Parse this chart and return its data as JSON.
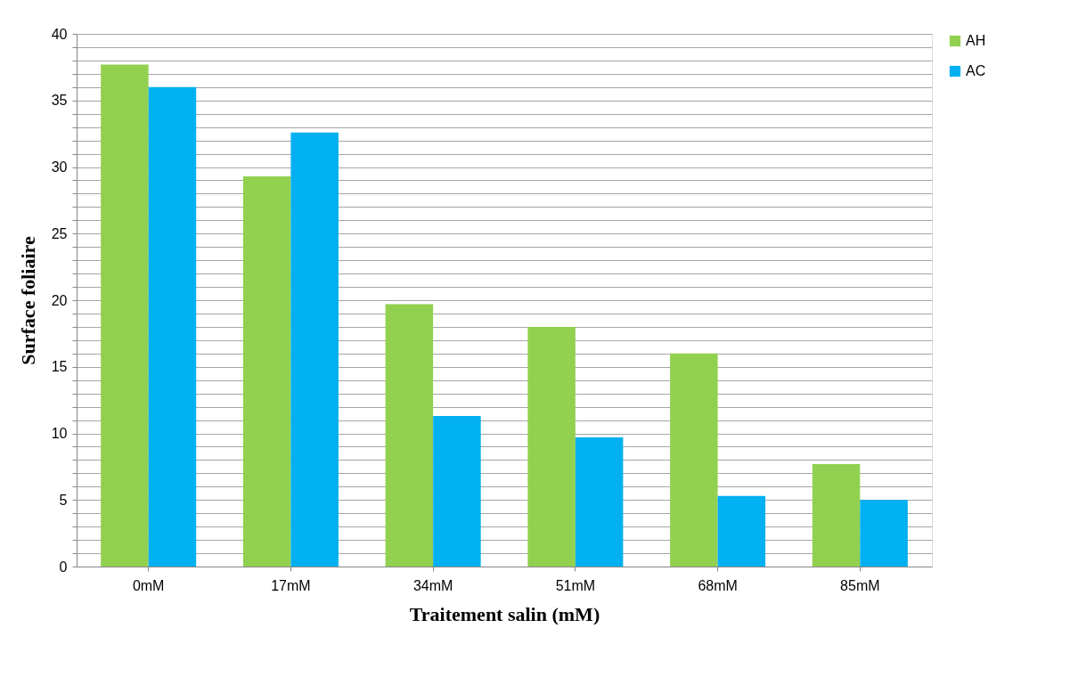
{
  "chart_data": {
    "type": "bar",
    "xlabel": "Traitement salin (mM)",
    "ylabel": "Surface foliaire",
    "categories": [
      "0mM",
      "17mM",
      "34mM",
      "51mM",
      "68mM",
      "85mM"
    ],
    "series": [
      {
        "name": "AH",
        "color": "#92d050",
        "values": [
          37.7,
          29.3,
          19.7,
          18.0,
          16.0,
          7.7
        ]
      },
      {
        "name": "AC",
        "color": "#00b0f0",
        "values": [
          36.0,
          32.6,
          11.3,
          9.7,
          5.3,
          5.0
        ]
      }
    ],
    "ylim": [
      0,
      40
    ],
    "yticks": [
      0,
      {
        "value": 1,
        "label": null
      },
      {
        "value": 2,
        "label": null
      },
      {
        "value": 3,
        "label": null
      },
      {
        "value": 4,
        "label": null
      },
      5,
      {
        "value": 6,
        "label": null
      },
      {
        "value": 7,
        "label": null
      },
      {
        "value": 8,
        "label": null
      },
      {
        "value": 9,
        "label": null
      },
      10,
      {
        "value": 11,
        "label": null
      },
      {
        "value": 12,
        "label": null
      },
      {
        "value": 13,
        "label": null
      },
      {
        "value": 14,
        "label": null
      },
      15,
      {
        "value": 16,
        "label": null
      },
      {
        "value": 17,
        "label": null
      },
      {
        "value": 18,
        "label": null
      },
      {
        "value": 19,
        "label": null
      },
      20,
      {
        "value": 21,
        "label": null
      },
      {
        "value": 22,
        "label": null
      },
      {
        "value": 23,
        "label": null
      },
      {
        "value": 24,
        "label": null
      },
      25,
      {
        "value": 26,
        "label": null
      },
      {
        "value": 27,
        "label": null
      },
      {
        "value": 28,
        "label": null
      },
      {
        "value": 29,
        "label": null
      },
      30,
      {
        "value": 31,
        "label": null
      },
      {
        "value": 32,
        "label": null
      },
      {
        "value": 33,
        "label": null
      },
      {
        "value": 34,
        "label": null
      },
      35,
      {
        "value": 36,
        "label": null
      },
      {
        "value": 37,
        "label": null
      },
      {
        "value": 38,
        "label": null
      },
      {
        "value": 39,
        "label": null
      },
      40
    ],
    "grid": "y",
    "legend": "right"
  }
}
